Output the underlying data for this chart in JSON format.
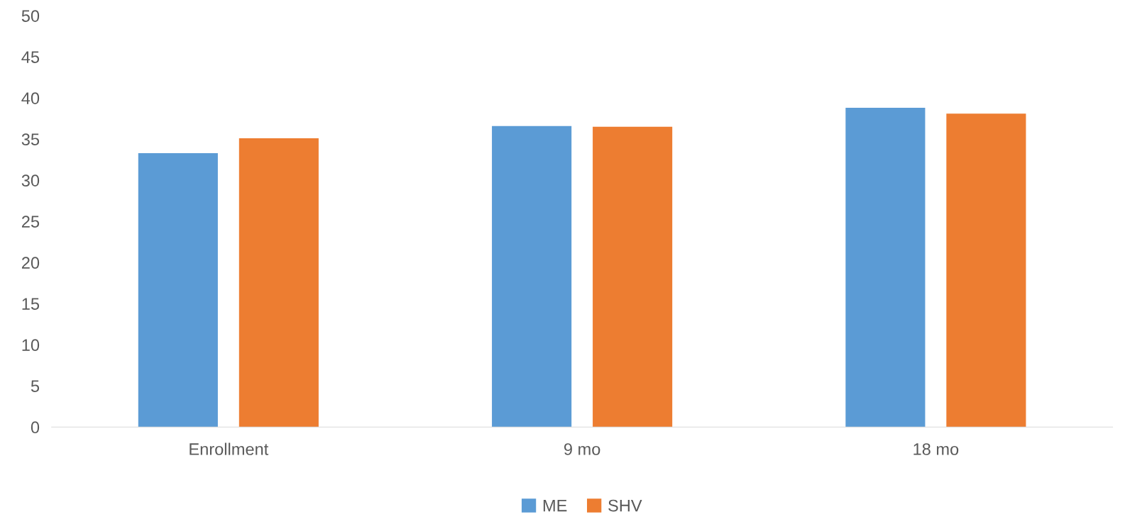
{
  "chart_data": {
    "type": "bar",
    "categories": [
      "Enrollment",
      "9 mo",
      "18 mo"
    ],
    "series": [
      {
        "name": "ME",
        "color": "#5b9bd5",
        "values": [
          33.3,
          36.6,
          38.8
        ]
      },
      {
        "name": "SHV",
        "color": "#ed7d31",
        "values": [
          35.1,
          36.5,
          38.1
        ]
      }
    ],
    "ylim": [
      0,
      50
    ],
    "yticks": [
      0,
      5,
      10,
      15,
      20,
      25,
      30,
      35,
      40,
      45,
      50
    ],
    "grid": false,
    "legend": "bottom"
  }
}
